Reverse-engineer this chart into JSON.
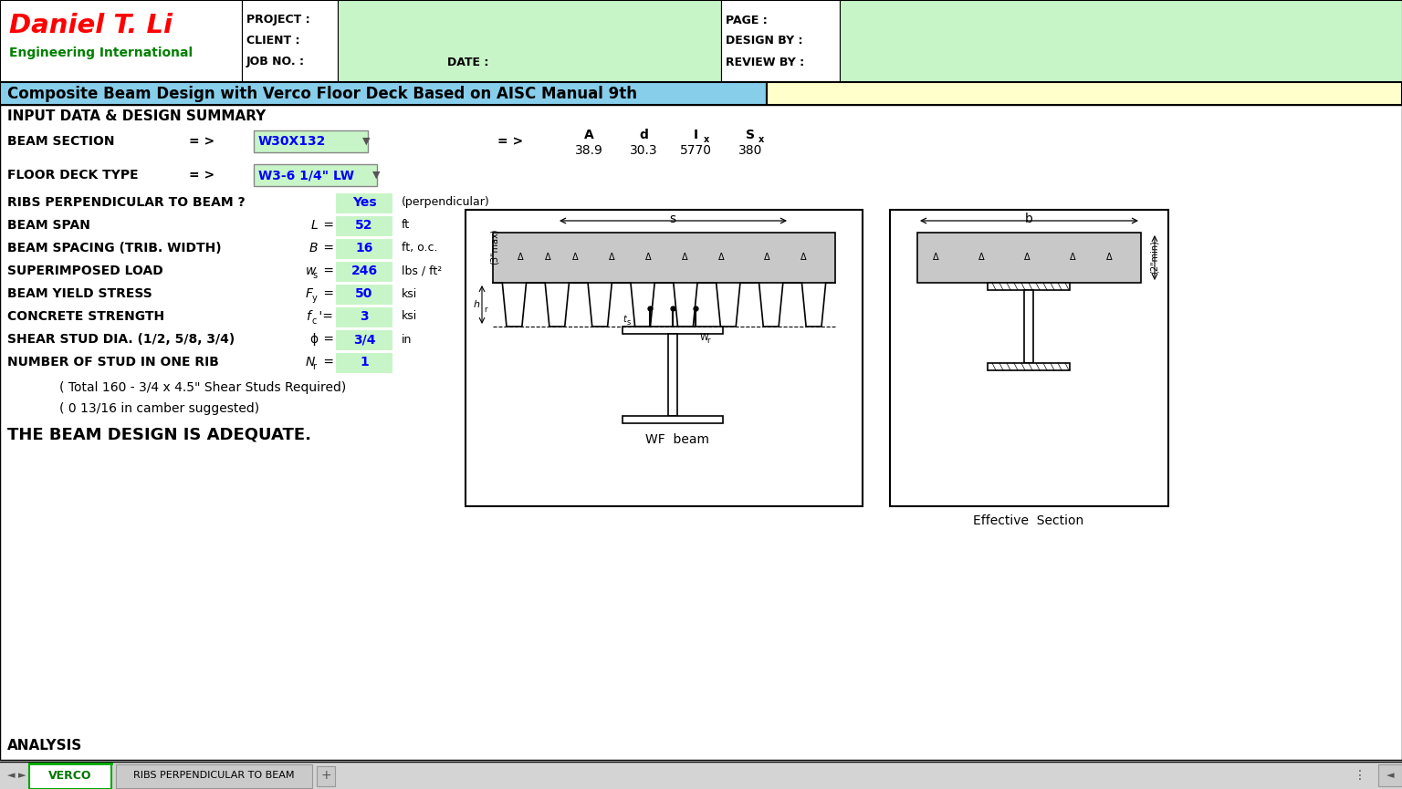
{
  "title": "Composite Beam Design with Verco Floor Deck Based on AISC Manual 9th",
  "company_name": "Daniel T. Li",
  "company_sub": "Engineering International",
  "beam_section_value": "W30X132",
  "beam_vals": [
    "38.9",
    "30.3",
    "5770",
    "380"
  ],
  "floor_deck_value": "W3-6 1/4\" LW",
  "ribs_value": "Yes",
  "ribs_note": "(perpendicular)",
  "span_value": "52",
  "span_unit": "ft",
  "spacing_value": "16",
  "spacing_unit": "ft, o.c.",
  "superimposed_value": "246",
  "superimposed_unit": "lbs / ft²",
  "yield_value": "50",
  "yield_unit": "ksi",
  "concrete_value": "3",
  "concrete_unit": "ksi",
  "shear_value": "3/4",
  "shear_unit": "in",
  "stud_value": "1",
  "note1": "( Total 160 - 3/4 x 4.5\" Shear Studs Required)",
  "note2": "( 0 13/16 in camber suggested)",
  "conclusion": "THE BEAM DESIGN IS ADEQUATE.",
  "tab1": "VERCO",
  "tab2": "RIBS PERPENDICULAR TO BEAM",
  "col_header_green": "#90EE90",
  "col_value_green": "#90EE90",
  "title_blue": "#87CEEB",
  "title_yellow": "#FFFFCC",
  "header_green": "#90EE90"
}
